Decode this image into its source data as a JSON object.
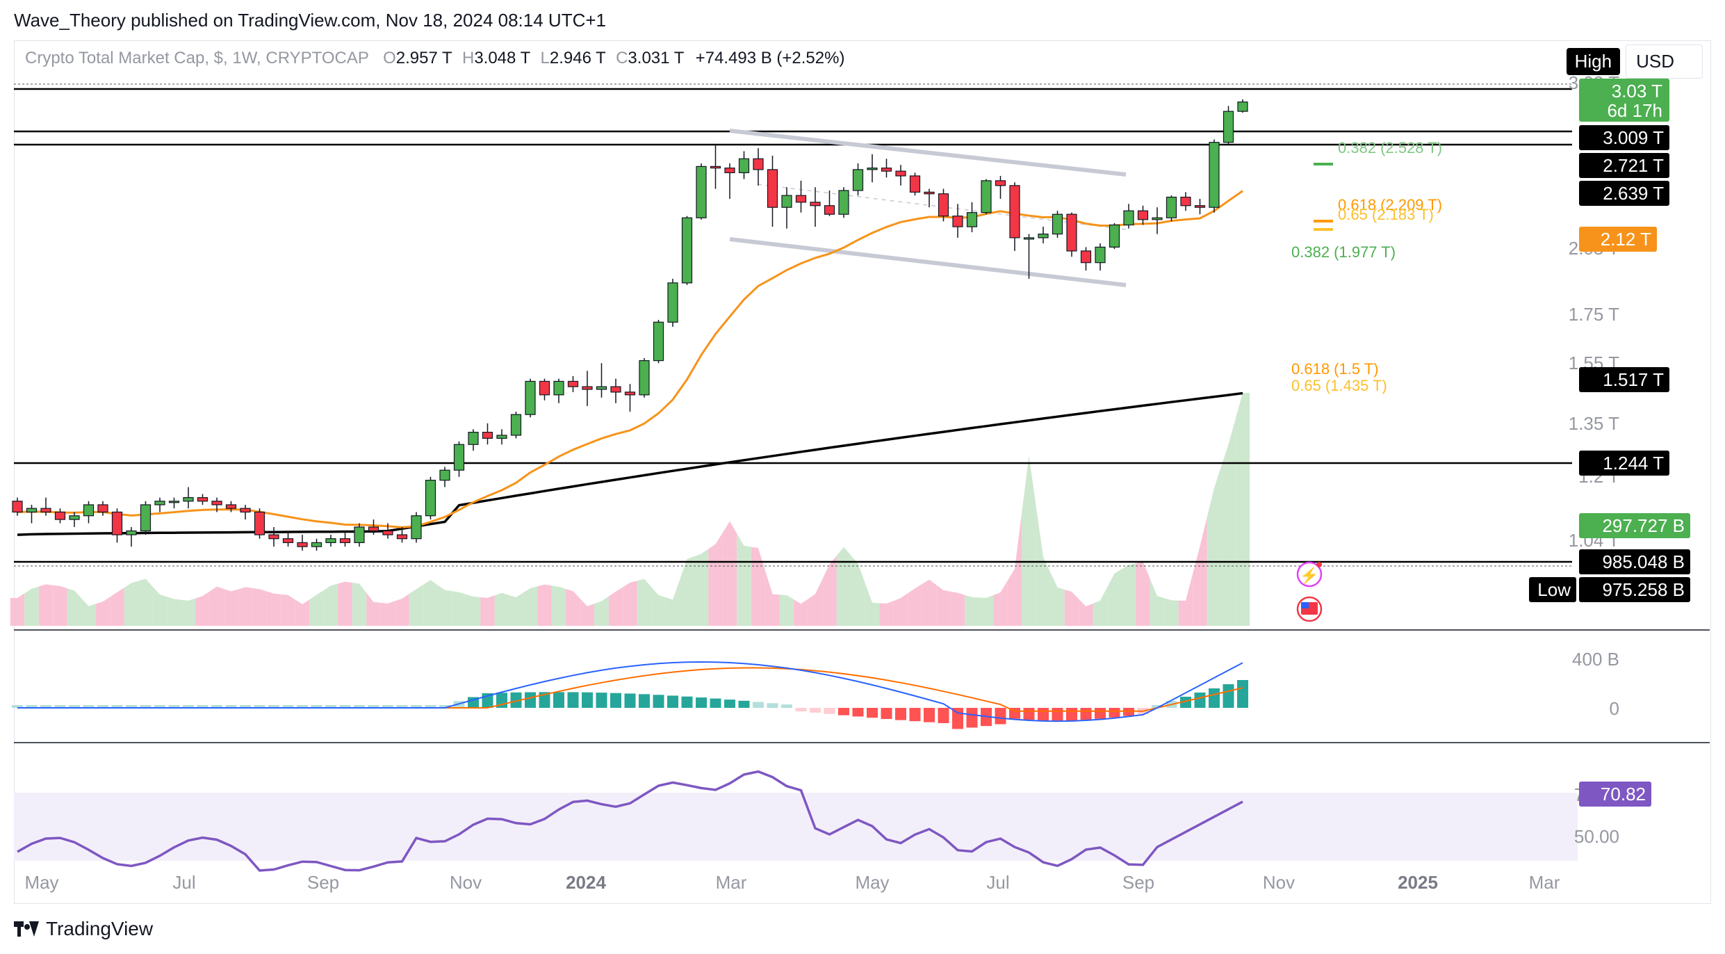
{
  "header": {
    "publisher_line": "Wave_Theory published on TradingView.com, Nov 18, 2024 08:14 UTC+1",
    "symbol": "Crypto Total Market Cap, $, 1W, CRYPTOCAP",
    "o_label": "O",
    "o_value": "2.957 T",
    "h_label": "H",
    "h_value": "3.048 T",
    "l_label": "L",
    "l_value": "2.946 T",
    "c_label": "C",
    "c_value": "3.031 T",
    "change": "+74.493 B (+2.52%)",
    "high_button": "High",
    "currency": "USD"
  },
  "brand": {
    "name": "TradingView"
  },
  "colors": {
    "up": "#4caf50",
    "down": "#f23645",
    "ema_orange": "#f7931a",
    "ma_black": "#000000",
    "macd": "#2962ff",
    "signal": "#ff6d00",
    "rsi": "#7e57c2",
    "rsi_band": "#f3effa",
    "vol_up": "#c8e6c9",
    "vol_down": "#f8bbd0",
    "channel": "#c7cad4"
  },
  "chart_data": {
    "type": "candlestick",
    "price_axis_labels": [
      "1.04 T",
      "1.2 T",
      "1.35 T",
      "1.55 T",
      "1.75 T",
      "2.05 T",
      "3.03 T"
    ],
    "time_axis_labels": [
      "May",
      "Jul",
      "Sep",
      "Nov",
      "2024",
      "Mar",
      "May",
      "Jul",
      "Sep",
      "Nov",
      "2025",
      "Mar"
    ],
    "horizontal_levels": [
      {
        "value": 3.031,
        "label": "3.03 T",
        "style": "green",
        "note": "6d 17h"
      },
      {
        "value": 3.009,
        "label": "3.009 T",
        "style": "black"
      },
      {
        "value": 2.721,
        "label": "2.721 T",
        "style": "black"
      },
      {
        "value": 2.639,
        "label": "2.639 T",
        "style": "black"
      },
      {
        "value": 1.244,
        "label": "1.244 T",
        "style": "black"
      }
    ],
    "moving_averages": [
      {
        "name": "EMA",
        "last_value": 2.12,
        "label": "2.12 T",
        "color": "#f7931a"
      },
      {
        "name": "MA",
        "last_value": 1.517,
        "label": "1.517 T",
        "color": "#000000"
      }
    ],
    "fib_levels": [
      {
        "ratio": "0.382",
        "value": "2.528 T",
        "color": "#81c784"
      },
      {
        "ratio": "0.618",
        "value": "2.209 T",
        "color": "#ff9800"
      },
      {
        "ratio": "0.65",
        "value": "2.183 T",
        "color": "#fbc02d"
      },
      {
        "ratio": "0.382",
        "value": "1.977 T",
        "color": "#4caf50"
      },
      {
        "ratio": "0.618",
        "value": "1.5 T",
        "color": "#ff9800"
      },
      {
        "ratio": "0.65",
        "value": "1.435 T",
        "color": "#fbc02d"
      }
    ],
    "volume_labels": [
      {
        "label": "297.727 B",
        "style": "green"
      },
      {
        "label": "985.048 B",
        "style": "black"
      },
      {
        "label": "975.258 B",
        "style": "black",
        "prefix": "Low"
      }
    ],
    "macd": {
      "axis_labels": [
        "400 B",
        "0"
      ]
    },
    "rsi": {
      "value": "70.82",
      "axis_labels": [
        "70.00",
        "50.00"
      ]
    },
    "candles": [
      [
        1.12,
        1.13,
        1.08,
        1.09
      ],
      [
        1.09,
        1.11,
        1.06,
        1.1
      ],
      [
        1.1,
        1.13,
        1.08,
        1.09
      ],
      [
        1.09,
        1.1,
        1.06,
        1.07
      ],
      [
        1.07,
        1.09,
        1.05,
        1.08
      ],
      [
        1.08,
        1.12,
        1.06,
        1.11
      ],
      [
        1.11,
        1.12,
        1.08,
        1.09
      ],
      [
        1.09,
        1.1,
        1.01,
        1.03
      ],
      [
        1.03,
        1.05,
        1.0,
        1.04
      ],
      [
        1.04,
        1.12,
        1.03,
        1.11
      ],
      [
        1.11,
        1.13,
        1.09,
        1.12
      ],
      [
        1.12,
        1.13,
        1.1,
        1.12
      ],
      [
        1.12,
        1.16,
        1.1,
        1.13
      ],
      [
        1.13,
        1.14,
        1.11,
        1.12
      ],
      [
        1.12,
        1.13,
        1.09,
        1.11
      ],
      [
        1.11,
        1.12,
        1.09,
        1.1
      ],
      [
        1.1,
        1.11,
        1.07,
        1.09
      ],
      [
        1.09,
        1.1,
        1.02,
        1.03
      ],
      [
        1.03,
        1.05,
        1.0,
        1.02
      ],
      [
        1.02,
        1.04,
        1.0,
        1.01
      ],
      [
        1.01,
        1.03,
        0.99,
        1.0
      ],
      [
        1.0,
        1.02,
        0.99,
        1.01
      ],
      [
        1.01,
        1.03,
        1.0,
        1.02
      ],
      [
        1.02,
        1.04,
        1.0,
        1.01
      ],
      [
        1.01,
        1.06,
        1.0,
        1.05
      ],
      [
        1.05,
        1.07,
        1.03,
        1.04
      ],
      [
        1.04,
        1.06,
        1.02,
        1.03
      ],
      [
        1.03,
        1.05,
        1.01,
        1.02
      ],
      [
        1.02,
        1.09,
        1.01,
        1.08
      ],
      [
        1.08,
        1.19,
        1.07,
        1.18
      ],
      [
        1.18,
        1.22,
        1.16,
        1.21
      ],
      [
        1.21,
        1.3,
        1.19,
        1.29
      ],
      [
        1.29,
        1.34,
        1.27,
        1.33
      ],
      [
        1.33,
        1.36,
        1.29,
        1.31
      ],
      [
        1.31,
        1.34,
        1.29,
        1.32
      ],
      [
        1.32,
        1.4,
        1.31,
        1.39
      ],
      [
        1.39,
        1.52,
        1.38,
        1.51
      ],
      [
        1.51,
        1.52,
        1.44,
        1.46
      ],
      [
        1.46,
        1.52,
        1.43,
        1.51
      ],
      [
        1.51,
        1.53,
        1.47,
        1.49
      ],
      [
        1.49,
        1.55,
        1.42,
        1.48
      ],
      [
        1.48,
        1.58,
        1.45,
        1.49
      ],
      [
        1.49,
        1.52,
        1.43,
        1.47
      ],
      [
        1.47,
        1.5,
        1.4,
        1.46
      ],
      [
        1.46,
        1.6,
        1.45,
        1.59
      ],
      [
        1.59,
        1.76,
        1.58,
        1.75
      ],
      [
        1.75,
        1.95,
        1.73,
        1.93
      ],
      [
        1.93,
        2.28,
        1.92,
        2.27
      ],
      [
        2.27,
        2.6,
        2.26,
        2.58
      ],
      [
        2.58,
        2.73,
        2.44,
        2.57
      ],
      [
        2.57,
        2.6,
        2.38,
        2.54
      ],
      [
        2.54,
        2.68,
        2.5,
        2.63
      ],
      [
        2.63,
        2.7,
        2.46,
        2.56
      ],
      [
        2.56,
        2.65,
        2.22,
        2.33
      ],
      [
        2.33,
        2.45,
        2.21,
        2.4
      ],
      [
        2.4,
        2.49,
        2.3,
        2.36
      ],
      [
        2.36,
        2.45,
        2.22,
        2.34
      ],
      [
        2.34,
        2.43,
        2.28,
        2.29
      ],
      [
        2.29,
        2.45,
        2.27,
        2.43
      ],
      [
        2.43,
        2.6,
        2.4,
        2.56
      ],
      [
        2.56,
        2.66,
        2.48,
        2.57
      ],
      [
        2.57,
        2.63,
        2.51,
        2.55
      ],
      [
        2.55,
        2.59,
        2.46,
        2.52
      ],
      [
        2.52,
        2.54,
        2.4,
        2.42
      ],
      [
        2.42,
        2.44,
        2.33,
        2.41
      ],
      [
        2.41,
        2.44,
        2.25,
        2.28
      ],
      [
        2.28,
        2.35,
        2.16,
        2.22
      ],
      [
        2.22,
        2.36,
        2.19,
        2.3
      ],
      [
        2.3,
        2.5,
        2.29,
        2.49
      ],
      [
        2.49,
        2.52,
        2.38,
        2.46
      ],
      [
        2.46,
        2.48,
        2.09,
        2.16
      ],
      [
        2.16,
        2.18,
        1.95,
        2.16
      ],
      [
        2.16,
        2.22,
        2.13,
        2.18
      ],
      [
        2.18,
        2.31,
        2.16,
        2.29
      ],
      [
        2.29,
        2.3,
        2.06,
        2.09
      ],
      [
        2.09,
        2.11,
        1.99,
        2.03
      ],
      [
        2.03,
        2.13,
        1.99,
        2.11
      ],
      [
        2.11,
        2.24,
        2.1,
        2.23
      ],
      [
        2.23,
        2.35,
        2.21,
        2.31
      ],
      [
        2.31,
        2.34,
        2.23,
        2.26
      ],
      [
        2.26,
        2.33,
        2.18,
        2.27
      ],
      [
        2.27,
        2.4,
        2.25,
        2.39
      ],
      [
        2.39,
        2.42,
        2.31,
        2.34
      ],
      [
        2.34,
        2.38,
        2.29,
        2.33
      ],
      [
        2.33,
        2.76,
        2.3,
        2.74
      ],
      [
        2.74,
        3.0,
        2.72,
        2.96
      ],
      [
        2.96,
        3.05,
        2.95,
        3.03
      ]
    ]
  }
}
